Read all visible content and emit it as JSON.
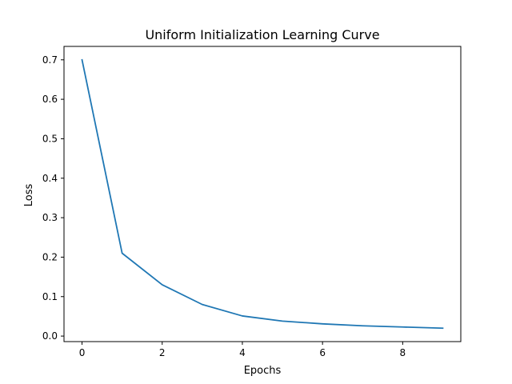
{
  "colors": {
    "line": "#1f77b4",
    "axes": "#000000",
    "background": "#ffffff"
  },
  "chart_data": {
    "type": "line",
    "title": "Uniform Initialization Learning Curve",
    "xlabel": "Epochs",
    "ylabel": "Loss",
    "xlim": [
      -0.45,
      9.45
    ],
    "ylim": [
      -0.014,
      0.734
    ],
    "xticks": [
      0,
      2,
      4,
      6,
      8
    ],
    "xtick_labels": [
      "0",
      "2",
      "4",
      "6",
      "8"
    ],
    "yticks": [
      0.0,
      0.1,
      0.2,
      0.3,
      0.4,
      0.5,
      0.6,
      0.7
    ],
    "ytick_labels": [
      "0.0",
      "0.1",
      "0.2",
      "0.3",
      "0.4",
      "0.5",
      "0.6",
      "0.7"
    ],
    "grid": false,
    "legend": "none",
    "series": [
      {
        "x": [
          0,
          1,
          2,
          3,
          4,
          5,
          6,
          7,
          8,
          9
        ],
        "y": [
          0.7,
          0.21,
          0.13,
          0.08,
          0.051,
          0.038,
          0.031,
          0.026,
          0.023,
          0.02
        ]
      }
    ]
  }
}
